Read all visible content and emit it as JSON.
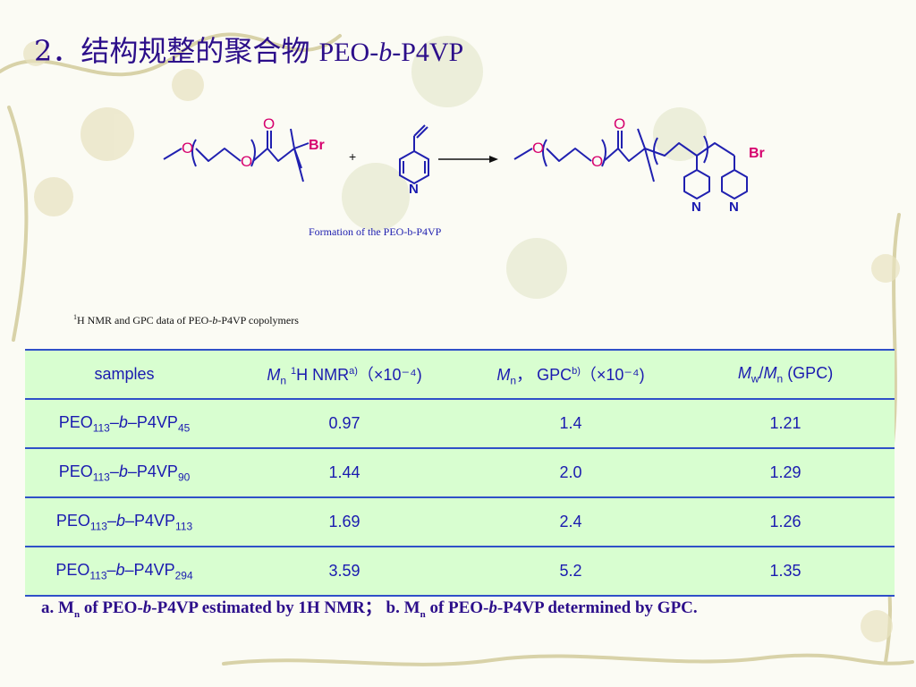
{
  "title": {
    "zh": "2．结构规整的聚合物",
    "en_prefix": "PEO-",
    "en_italic": "b",
    "en_suffix": "-P4VP"
  },
  "scheme": {
    "caption": "Formation of the PEO-b-P4VP",
    "plus": "+",
    "atom_o": "O",
    "atom_br": "Br",
    "atom_n": "N"
  },
  "table_caption": {
    "sup": "1",
    "prefix": "H NMR and GPC data of PEO-",
    "italic": "b",
    "suffix": "-P4VP copolymers"
  },
  "table": {
    "headers": {
      "samples": "samples",
      "mn_nmr": {
        "m": "M",
        "sub": "n",
        "sup_pre": "1",
        "text": "H NMR",
        "sup_post": "a)",
        "tail": "（×10⁻⁴)"
      },
      "mn_gpc": {
        "m": "M",
        "sub": "n",
        "text": "，  GPC",
        "sup_post": "b)",
        "tail": "（×10⁻⁴)"
      },
      "pdi": {
        "m1": "M",
        "sub1": "w",
        "slash": "/",
        "m2": "M",
        "sub2": "n",
        "tail": " (GPC)"
      }
    },
    "rows": [
      {
        "peo": "PEO",
        "peo_sub": "113",
        "dash1": "–",
        "b": "b",
        "dash2": "–P4VP",
        "p4vp_sub": "45",
        "mn_nmr": "0.97",
        "mn_gpc": "1.4",
        "pdi": "1.21"
      },
      {
        "peo": "PEO",
        "peo_sub": "113",
        "dash1": "–",
        "b": "b",
        "dash2": "–P4VP",
        "p4vp_sub": "90",
        "mn_nmr": "1.44",
        "mn_gpc": "2.0",
        "pdi": "1.29"
      },
      {
        "peo": "PEO",
        "peo_sub": "113",
        "dash1": "–",
        "b": "b",
        "dash2": "–P4VP",
        "p4vp_sub": "113",
        "mn_nmr": "1.69",
        "mn_gpc": "2.4",
        "pdi": "1.26"
      },
      {
        "peo": "PEO",
        "peo_sub": "113",
        "dash1": "–",
        "b": "b",
        "dash2": "–P4VP",
        "p4vp_sub": "294",
        "mn_nmr": "3.59",
        "mn_gpc": "5.2",
        "pdi": "1.35"
      }
    ]
  },
  "footnote": {
    "a_pre": "a. M",
    "a_sub": "n",
    "a_mid": " of PEO-",
    "a_b": "b",
    "a_post": "-P4VP estimated by 1H NMR；  b.  M",
    "b_sub": "n",
    "b_mid": " of PEO-",
    "b_b": "b",
    "b_post": "-P4VP determined by GPC."
  },
  "colors": {
    "title": "#2c0e8a",
    "table_bg": "#d8fed0",
    "table_border": "#2f50c8",
    "table_text": "#1a1ab0",
    "bond": "#2020b0",
    "oxygen": "#d6006e",
    "bromine": "#d6006e",
    "nitrogen": "#1a1ab0"
  }
}
